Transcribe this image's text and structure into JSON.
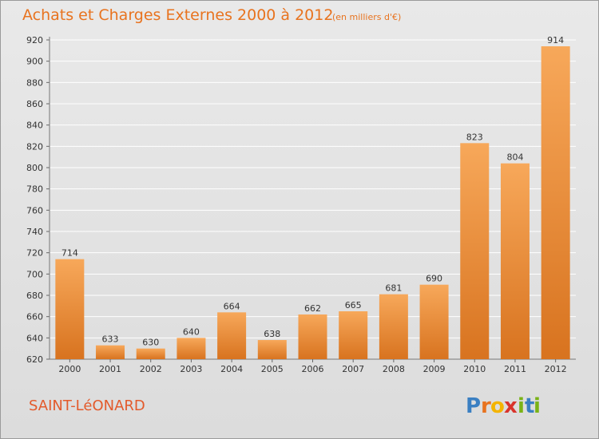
{
  "header": {
    "title": "Achats et Charges Externes 2000 à 2012",
    "unit": "(en milliers d'€)"
  },
  "footer": {
    "location": "SAINT-LéONARD",
    "brand_letters": [
      {
        "ch": "P",
        "color": "#3a7fc2"
      },
      {
        "ch": "r",
        "color": "#e8731f"
      },
      {
        "ch": "o",
        "color": "#f4b400"
      },
      {
        "ch": "x",
        "color": "#d9342b"
      },
      {
        "ch": "i",
        "color": "#7ab317"
      },
      {
        "ch": "t",
        "color": "#3a7fc2"
      },
      {
        "ch": "i",
        "color": "#7ab317"
      }
    ]
  },
  "colors": {
    "bar_top": "#f7a85a",
    "bar_bottom": "#d8731f",
    "grid": "#ffffff",
    "accent": "#e8731f"
  },
  "chart_data": {
    "type": "bar",
    "title": "Achats et Charges Externes 2000 à 2012",
    "categories": [
      "2000",
      "2001",
      "2002",
      "2003",
      "2004",
      "2005",
      "2006",
      "2007",
      "2008",
      "2009",
      "2010",
      "2011",
      "2012"
    ],
    "values": [
      714,
      633,
      630,
      640,
      664,
      638,
      662,
      665,
      681,
      690,
      823,
      804,
      914
    ],
    "ylim": [
      620,
      920
    ],
    "yticks": [
      620,
      640,
      660,
      680,
      700,
      720,
      740,
      760,
      780,
      800,
      820,
      840,
      860,
      880,
      900,
      920
    ],
    "grid": true
  }
}
